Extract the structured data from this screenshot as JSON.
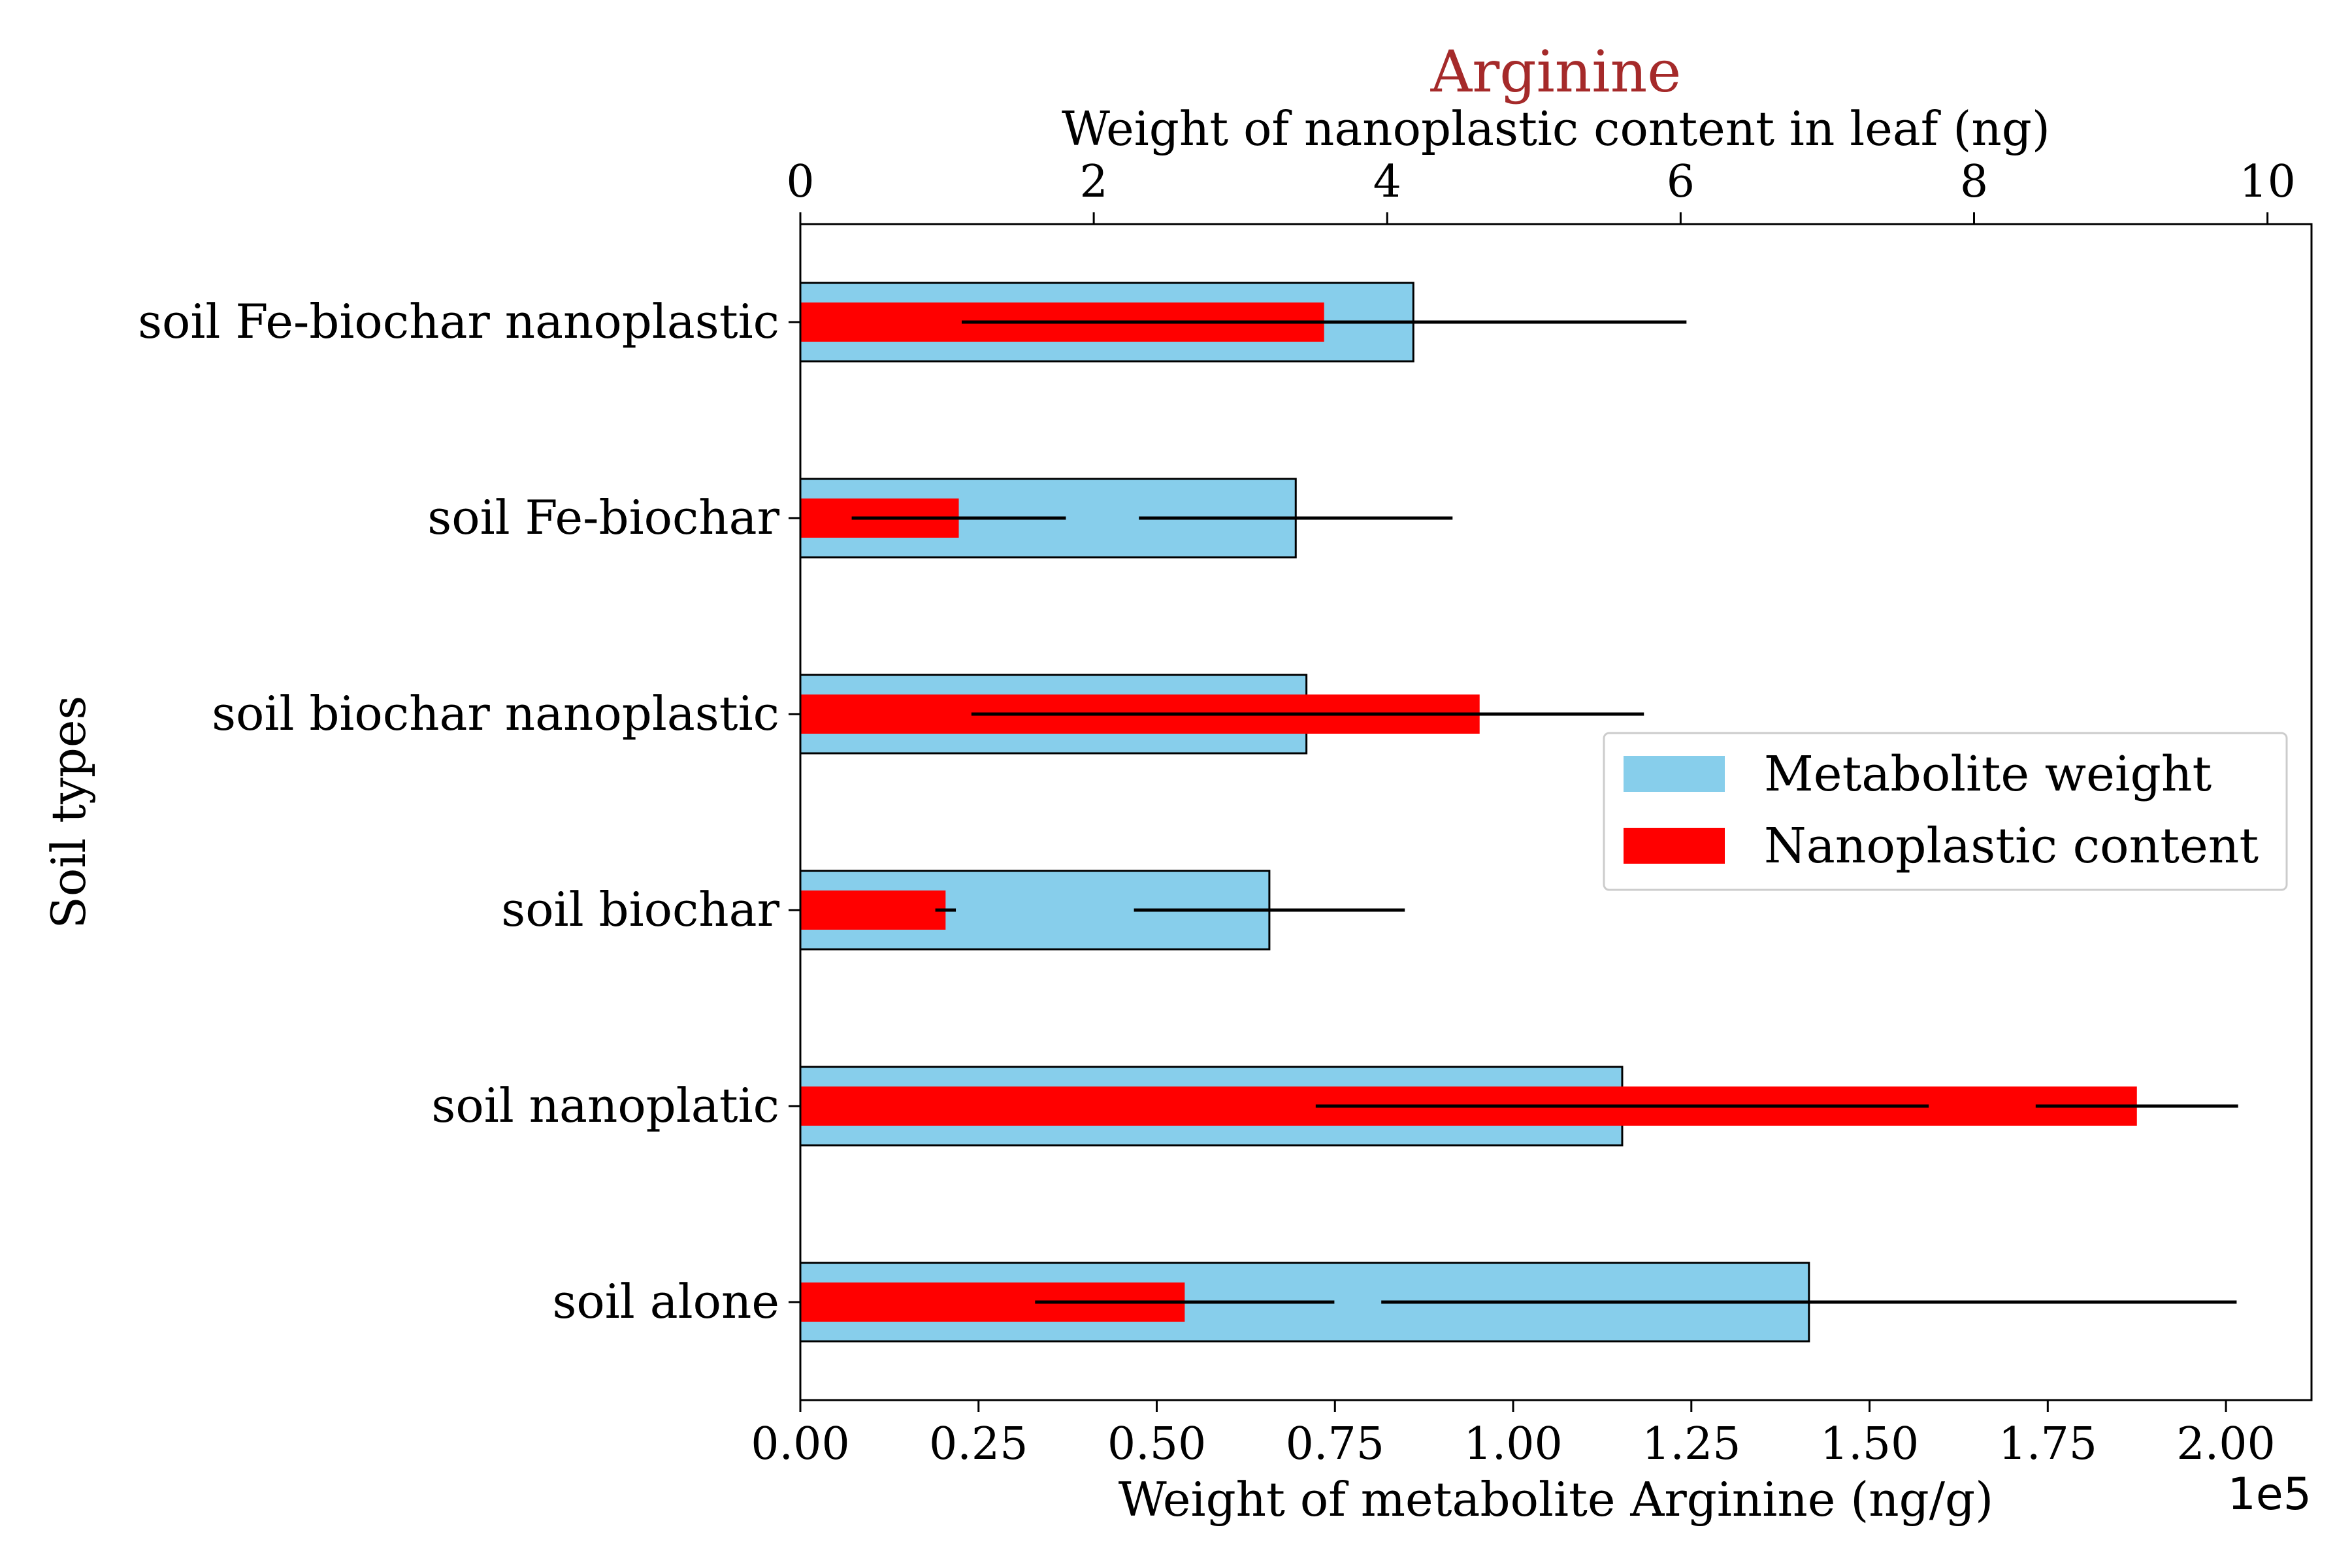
{
  "chart_data": {
    "type": "bar",
    "orientation": "horizontal",
    "title": "Arginine",
    "title_color": "#a52a2a",
    "ylabel": "Soil types",
    "xlabel_bottom": "Weight of metabolite Arginine (ng/g)",
    "xlabel_top": "Weight of nanoplastic content in leaf (ng)",
    "bottom_offset_text": "1e5",
    "categories": [
      "soil Fe-biochar nanoplastic",
      "soil Fe-biochar",
      "soil biochar nanoplastic",
      "soil biochar",
      "soil nanoplatic",
      "soil alone"
    ],
    "bottom_axis": {
      "range": [
        0,
        2.12
      ],
      "ticks": [
        0.0,
        0.25,
        0.5,
        0.75,
        1.0,
        1.25,
        1.5,
        1.75,
        2.0
      ],
      "tick_labels": [
        "0.00",
        "0.25",
        "0.50",
        "0.75",
        "1.00",
        "1.25",
        "1.50",
        "1.75",
        "2.00"
      ]
    },
    "top_axis": {
      "range": [
        0,
        10.3
      ],
      "ticks": [
        0,
        2,
        4,
        6,
        8,
        10
      ],
      "tick_labels": [
        "0",
        "2",
        "4",
        "6",
        "8",
        "10"
      ]
    },
    "series": [
      {
        "name": "Metabolite weight",
        "axis": "bottom",
        "color": "#87ceeb",
        "edgecolor": "#000000",
        "values": [
          0.86,
          0.695,
          0.71,
          0.658,
          1.153,
          1.415
        ],
        "errors": [
          0.36,
          0.22,
          0.47,
          0.19,
          0.43,
          0.6
        ]
      },
      {
        "name": "Nanoplastic content",
        "axis": "top",
        "color": "#ff0000",
        "values": [
          3.57,
          1.08,
          4.63,
          0.99,
          9.11,
          2.62
        ],
        "errors": [
          2.47,
          0.73,
          1.12,
          0.07,
          0.69,
          1.02
        ]
      }
    ],
    "legend": {
      "placement": "center-right",
      "entries": [
        "Metabolite weight",
        "Nanoplastic content"
      ]
    }
  }
}
